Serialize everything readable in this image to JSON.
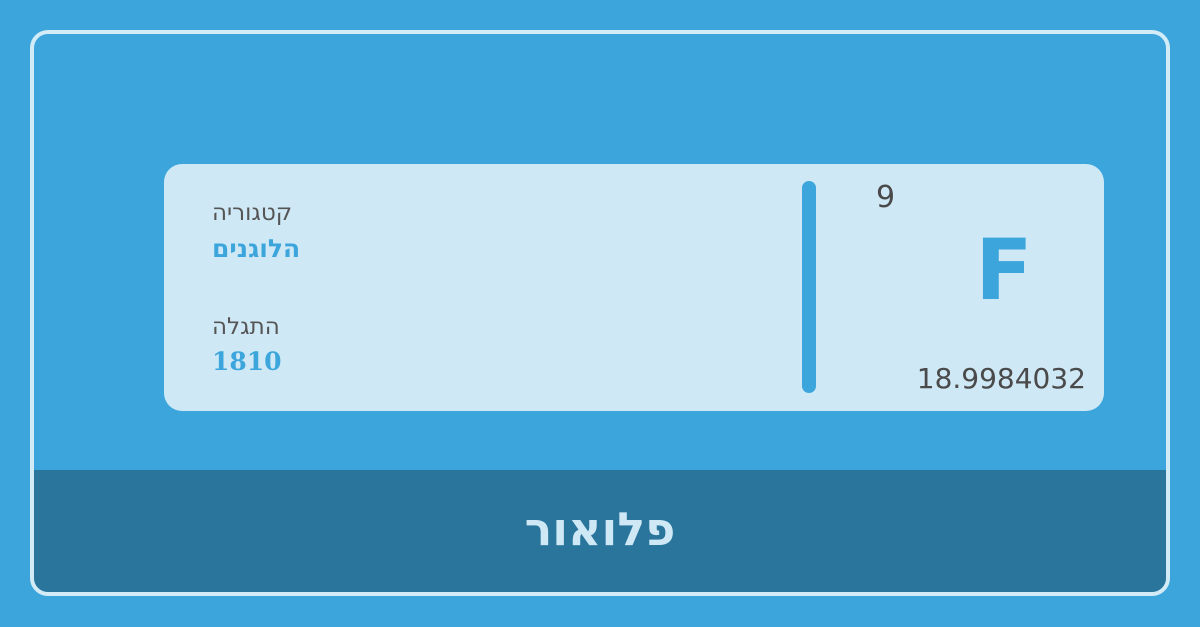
{
  "element": {
    "name": "פלואור",
    "symbol": "F",
    "atomic_number": "9",
    "atomic_mass": "18.9984032"
  },
  "info": {
    "category_label": "קטגוריה",
    "category_value": "הלוגנים",
    "discovery_label": "התגלה",
    "discovery_value": "1810"
  },
  "colors": {
    "background": "#3ba5dc",
    "card": "#cfe8f5",
    "band": "#2a759c",
    "accent": "#3ba5dc",
    "text": "#4a4a4a"
  }
}
